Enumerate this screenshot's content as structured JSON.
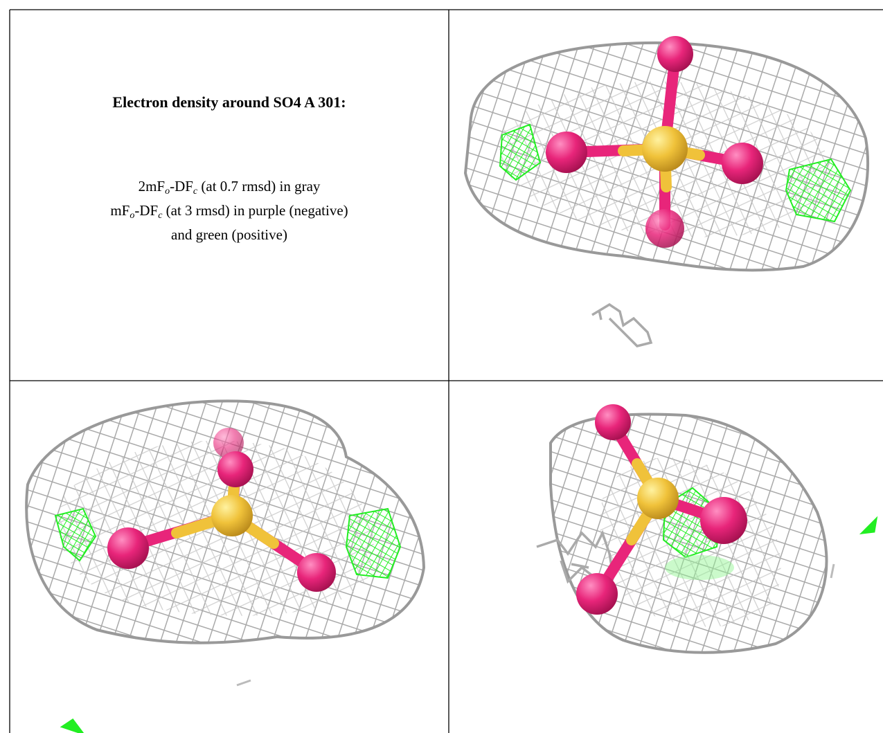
{
  "title": "Electron density around SO4 A 301:",
  "caption": [
    [
      "2mF",
      "o",
      "-DF",
      "c",
      " (at 0.7 rmsd) in gray"
    ],
    [
      "mF",
      "o",
      "-DF",
      "c",
      " (at 3 rmsd) in purple (negative)"
    ],
    [
      "and green (positive)"
    ]
  ]
}
